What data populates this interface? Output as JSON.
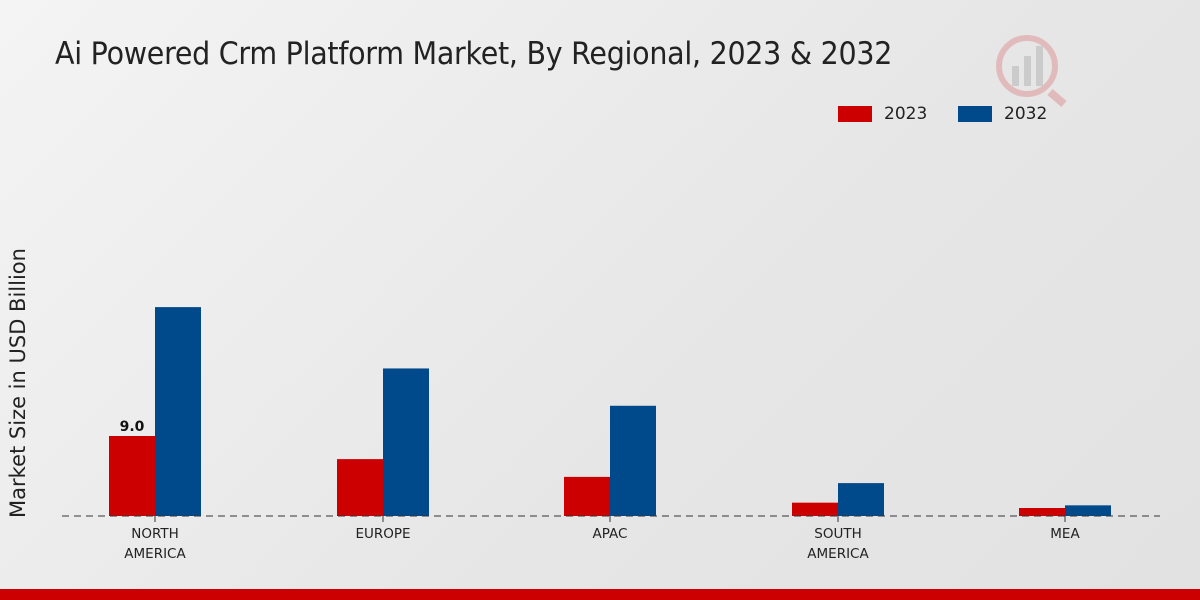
{
  "title": "Ai Powered Crm Platform Market, By Regional, 2023 & 2032",
  "colors": {
    "2023": "#cc0000",
    "2032": "#004a8c",
    "accent_bar": "#cc0000"
  },
  "chart_data": {
    "type": "bar",
    "title": "Ai Powered Crm Platform Market, By Regional, 2023 & 2032",
    "xlabel": "",
    "ylabel": "Market Size in USD Billion",
    "categories": [
      "NORTH\nAMERICA",
      "EUROPE",
      "APAC",
      "SOUTH\nAMERICA",
      "MEA"
    ],
    "series": [
      {
        "name": "2023",
        "values": [
          9.0,
          6.4,
          4.4,
          1.5,
          0.9
        ]
      },
      {
        "name": "2032",
        "values": [
          23.5,
          16.6,
          12.4,
          3.7,
          1.2
        ]
      }
    ],
    "data_labels": [
      {
        "series": "2023",
        "category": "NORTH\nAMERICA",
        "text": "9.0"
      }
    ],
    "ylim": [
      0,
      30
    ],
    "grid": false,
    "legend_position": "top-right"
  }
}
